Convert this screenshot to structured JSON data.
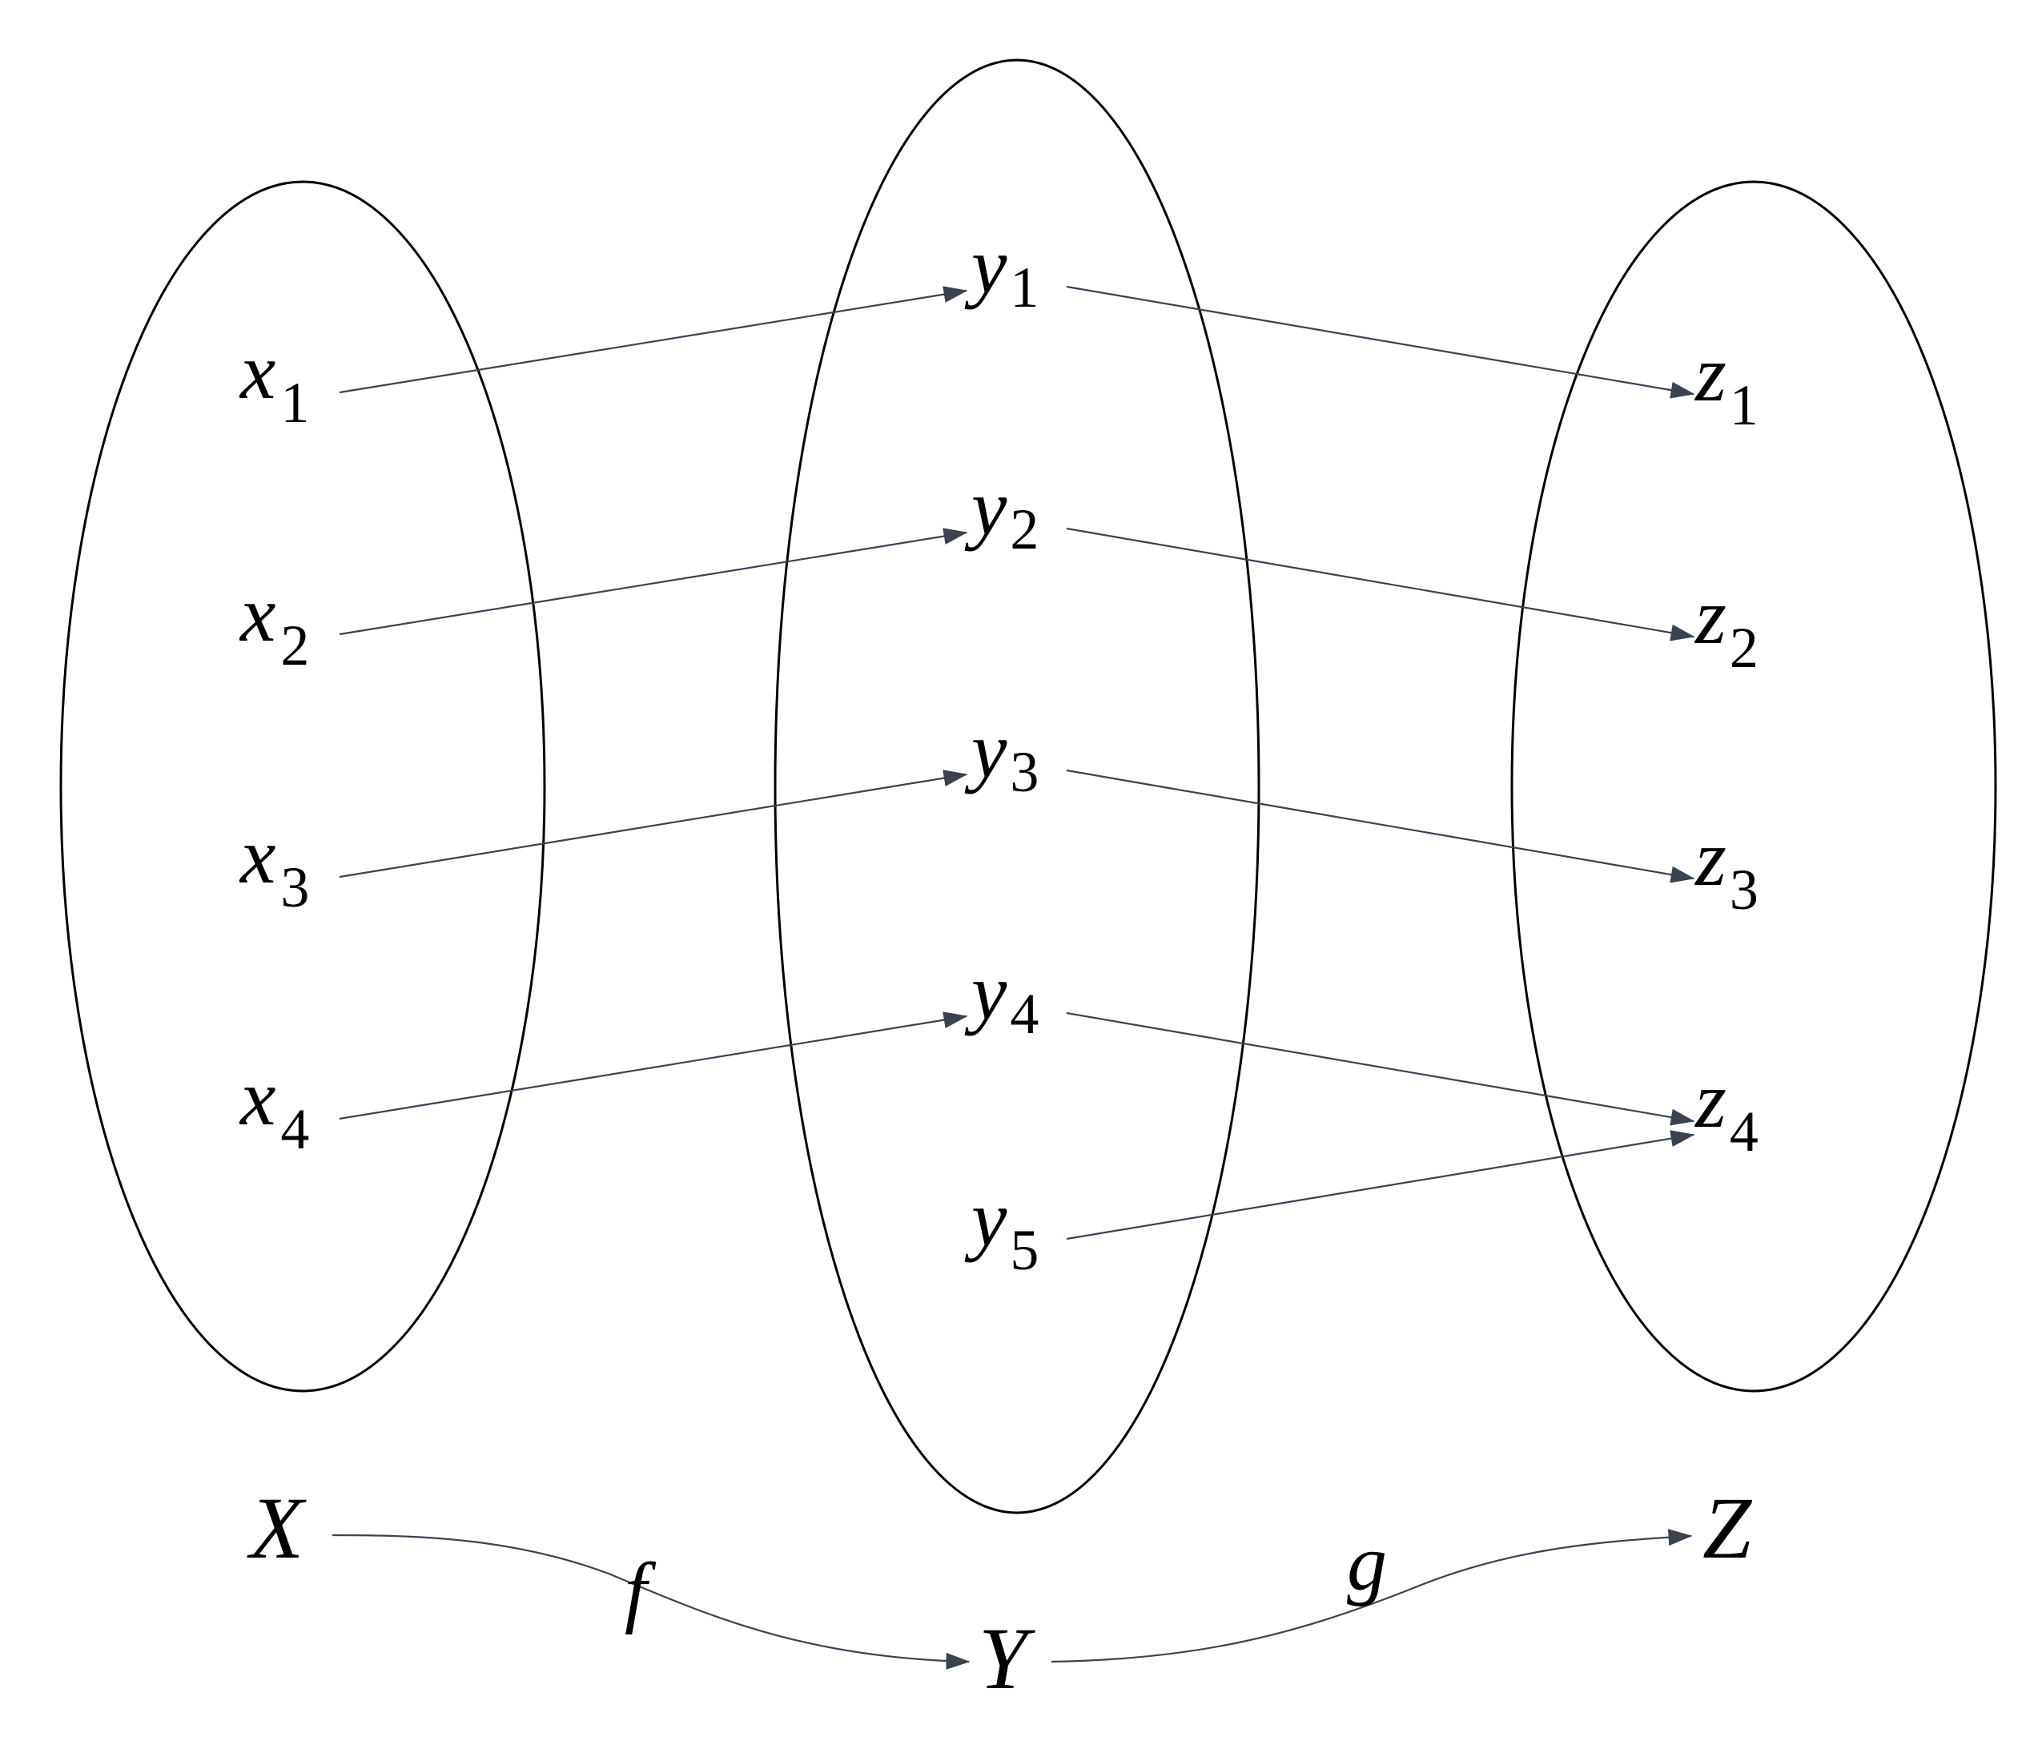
{
  "diagram": {
    "sets": [
      {
        "id": "X",
        "label": "X"
      },
      {
        "id": "Y",
        "label": "Y"
      },
      {
        "id": "Z",
        "label": "Z"
      }
    ],
    "elements": {
      "x": [
        {
          "var": "x",
          "sub": "1"
        },
        {
          "var": "x",
          "sub": "2"
        },
        {
          "var": "x",
          "sub": "3"
        },
        {
          "var": "x",
          "sub": "4"
        }
      ],
      "y": [
        {
          "var": "y",
          "sub": "1"
        },
        {
          "var": "y",
          "sub": "2"
        },
        {
          "var": "y",
          "sub": "3"
        },
        {
          "var": "y",
          "sub": "4"
        },
        {
          "var": "y",
          "sub": "5"
        }
      ],
      "z": [
        {
          "var": "z",
          "sub": "1"
        },
        {
          "var": "z",
          "sub": "2"
        },
        {
          "var": "z",
          "sub": "3"
        },
        {
          "var": "z",
          "sub": "4"
        }
      ]
    },
    "mapping_f": [
      {
        "from": "x1",
        "to": "y1"
      },
      {
        "from": "x2",
        "to": "y2"
      },
      {
        "from": "x3",
        "to": "y3"
      },
      {
        "from": "x4",
        "to": "y4"
      }
    ],
    "mapping_g": [
      {
        "from": "y1",
        "to": "z1"
      },
      {
        "from": "y2",
        "to": "z2"
      },
      {
        "from": "y3",
        "to": "z3"
      },
      {
        "from": "y4",
        "to": "z4"
      },
      {
        "from": "y5",
        "to": "z4"
      }
    ],
    "functions": {
      "f": {
        "label": "f",
        "from": "X",
        "to": "Y"
      },
      "g": {
        "label": "g",
        "from": "Y",
        "to": "Z"
      }
    }
  }
}
